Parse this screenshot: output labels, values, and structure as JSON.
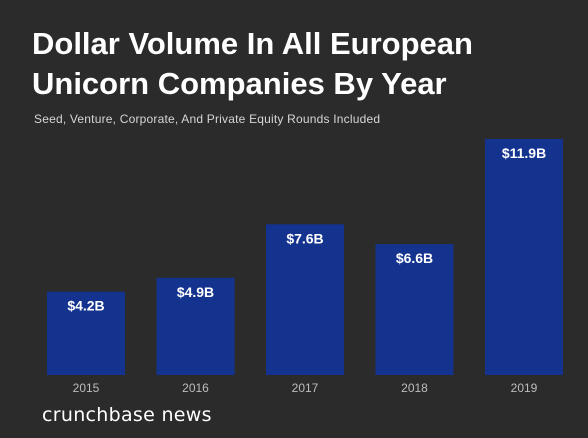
{
  "brand": {
    "text": "crunchbase news"
  },
  "chart_data": {
    "type": "bar",
    "title": "Dollar Volume In All European Unicorn Companies By Year",
    "subtitle": "Seed, Venture, Corporate, And Private Equity Rounds Included",
    "categories": [
      "2015",
      "2016",
      "2017",
      "2018",
      "2019"
    ],
    "values": [
      4.2,
      4.9,
      7.6,
      6.6,
      11.9
    ],
    "value_labels": [
      "$4.2B",
      "$4.9B",
      "$7.6B",
      "$6.6B",
      "$11.9B"
    ],
    "xlabel": "",
    "ylabel": "",
    "ylim": [
      0,
      11.9
    ],
    "grid": false,
    "legend": "none",
    "bar_color": "#14338f",
    "background_color": "#2b2b2b"
  }
}
